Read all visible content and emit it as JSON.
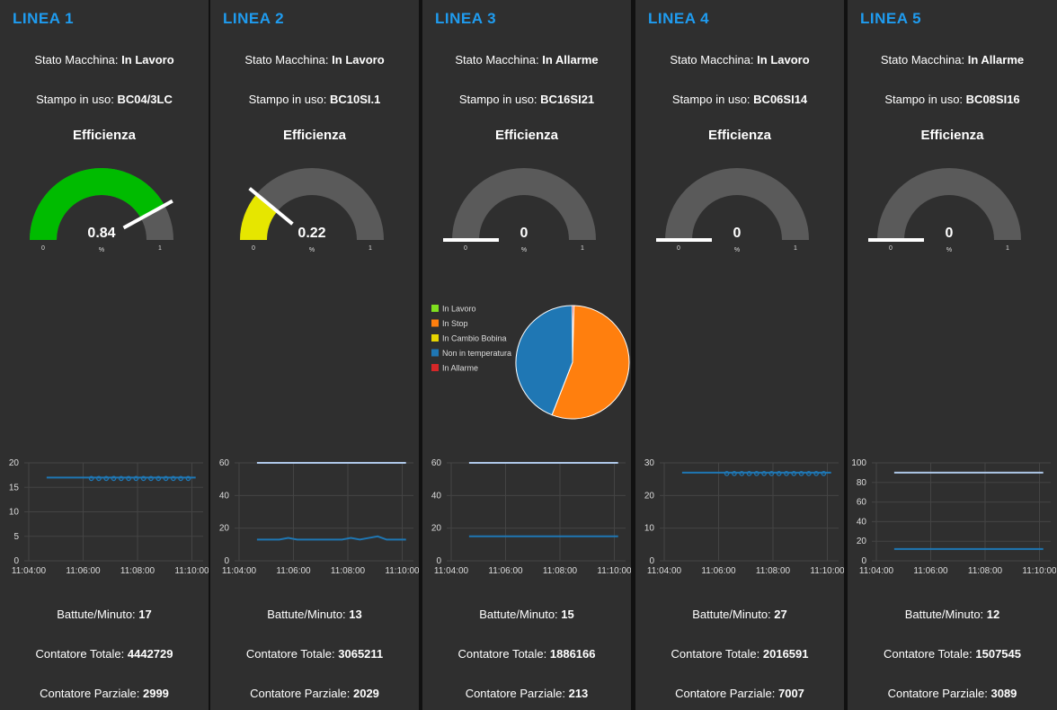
{
  "colors": {
    "panel_bg": "#2f2f2f",
    "title": "#1f9cf0",
    "gauge_track": "#5a5a5a",
    "grid": "#444444",
    "series_main": "#1f77b4",
    "series_light": "#aec7e8"
  },
  "labels": {
    "stato": "Stato Macchina:",
    "stampo": "Stampo in uso:",
    "efficienza": "Efficienza",
    "battute": "Battute/Minuto:",
    "contatore_totale": "Contatore Totale:",
    "contatore_parziale": "Contatore Parziale:",
    "gauge_unit": "%",
    "gauge_min": "0",
    "gauge_max": "1"
  },
  "panels": [
    {
      "title": "LINEA 1",
      "stato": "In Lavoro",
      "stampo": "BC04/3LC",
      "efficienza": 0.84,
      "efficienza_label": "0.84",
      "gauge_color": "#00bb00",
      "battute": "17",
      "contatore_totale": "4442729",
      "contatore_parziale": "2999",
      "chart": {
        "type": "line",
        "yticks": [
          "20",
          "15",
          "10",
          "5",
          "0"
        ],
        "ylim": [
          0,
          20
        ],
        "xticks": [
          "11:04:00",
          "11:06:00",
          "11:08:00",
          "11:10:00"
        ],
        "xlim": [
          0,
          6
        ],
        "series": [
          {
            "color": "#1f77b4",
            "x": [
              0.75,
              5.75
            ],
            "y": [
              17,
              17
            ],
            "markers": true
          }
        ]
      }
    },
    {
      "title": "LINEA 2",
      "stato": "In Lavoro",
      "stampo": "BC10SI.1",
      "efficienza": 0.22,
      "efficienza_label": "0.22",
      "gauge_color": "#e6e600",
      "battute": "13",
      "contatore_totale": "3065211",
      "contatore_parziale": "2029",
      "chart": {
        "type": "line",
        "yticks": [
          "60",
          "40",
          "20",
          "0"
        ],
        "ylim": [
          0,
          60
        ],
        "xticks": [
          "11:04:00",
          "11:06:00",
          "11:08:00",
          "11:10:00"
        ],
        "xlim": [
          0,
          6
        ],
        "series": [
          {
            "color": "#aec7e8",
            "x": [
              0.75,
              5.75
            ],
            "y": [
              60,
              60
            ],
            "markers": false
          },
          {
            "color": "#1f77b4",
            "x": [
              0.75,
              1.5,
              1.8,
              2.1,
              2.5,
              3.6,
              3.9,
              4.2,
              4.5,
              4.8,
              5.1,
              5.75
            ],
            "y": [
              13,
              13,
              14,
              13,
              13,
              13,
              14,
              13,
              14,
              15,
              13,
              13
            ],
            "markers": false
          }
        ]
      }
    },
    {
      "title": "LINEA 3",
      "stato": "In Allarme",
      "stampo": "BC16SI21",
      "efficienza": 0,
      "efficienza_label": "0",
      "gauge_color": "#00bb00",
      "battute": "15",
      "contatore_totale": "1886166",
      "contatore_parziale": "213",
      "pie": {
        "type": "pie",
        "legend": [
          {
            "name": "In Lavoro",
            "color": "#7fe01f"
          },
          {
            "name": "In Stop",
            "color": "#ff7f0e"
          },
          {
            "name": "In Cambio Bobina",
            "color": "#e6d400"
          },
          {
            "name": "Non in temperatura",
            "color": "#1f77b4"
          },
          {
            "name": "In Allarme",
            "color": "#d62728"
          }
        ],
        "values": [
          0,
          55.5,
          0,
          44,
          0.5
        ]
      },
      "chart": {
        "type": "line",
        "yticks": [
          "60",
          "40",
          "20",
          "0"
        ],
        "ylim": [
          0,
          60
        ],
        "xticks": [
          "11:04:00",
          "11:06:00",
          "11:08:00",
          "11:10:00"
        ],
        "xlim": [
          0,
          6
        ],
        "series": [
          {
            "color": "#aec7e8",
            "x": [
              0.75,
              5.75
            ],
            "y": [
              60,
              60
            ],
            "markers": false
          },
          {
            "color": "#1f77b4",
            "x": [
              0.75,
              5.75
            ],
            "y": [
              15,
              15
            ],
            "markers": false
          }
        ]
      }
    },
    {
      "title": "LINEA 4",
      "stato": "In Lavoro",
      "stampo": "BC06SI14",
      "efficienza": 0,
      "efficienza_label": "0",
      "gauge_color": "#00bb00",
      "battute": "27",
      "contatore_totale": "2016591",
      "contatore_parziale": "7007",
      "chart": {
        "type": "line",
        "yticks": [
          "30",
          "20",
          "10",
          "0"
        ],
        "ylim": [
          0,
          30
        ],
        "xticks": [
          "11:04:00",
          "11:06:00",
          "11:08:00",
          "11:10:00"
        ],
        "xlim": [
          0,
          6
        ],
        "series": [
          {
            "color": "#1f77b4",
            "x": [
              0.75,
              5.75
            ],
            "y": [
              27,
              27
            ],
            "markers": true
          }
        ]
      }
    },
    {
      "title": "LINEA 5",
      "stato": "In Allarme",
      "stampo": "BC08SI16",
      "efficienza": 0,
      "efficienza_label": "0",
      "gauge_color": "#00bb00",
      "battute": "12",
      "contatore_totale": "1507545",
      "contatore_parziale": "3089",
      "chart": {
        "type": "line",
        "yticks": [
          "100",
          "80",
          "60",
          "40",
          "20",
          "0"
        ],
        "ylim": [
          0,
          100
        ],
        "xticks": [
          "11:04:00",
          "11:06:00",
          "11:08:00",
          "11:10:00"
        ],
        "xlim": [
          0,
          6
        ],
        "series": [
          {
            "color": "#aec7e8",
            "x": [
              0.75,
              5.75
            ],
            "y": [
              90,
              90
            ],
            "markers": false
          },
          {
            "color": "#1f77b4",
            "x": [
              0.75,
              5.75
            ],
            "y": [
              12,
              12
            ],
            "markers": false
          }
        ]
      }
    }
  ]
}
